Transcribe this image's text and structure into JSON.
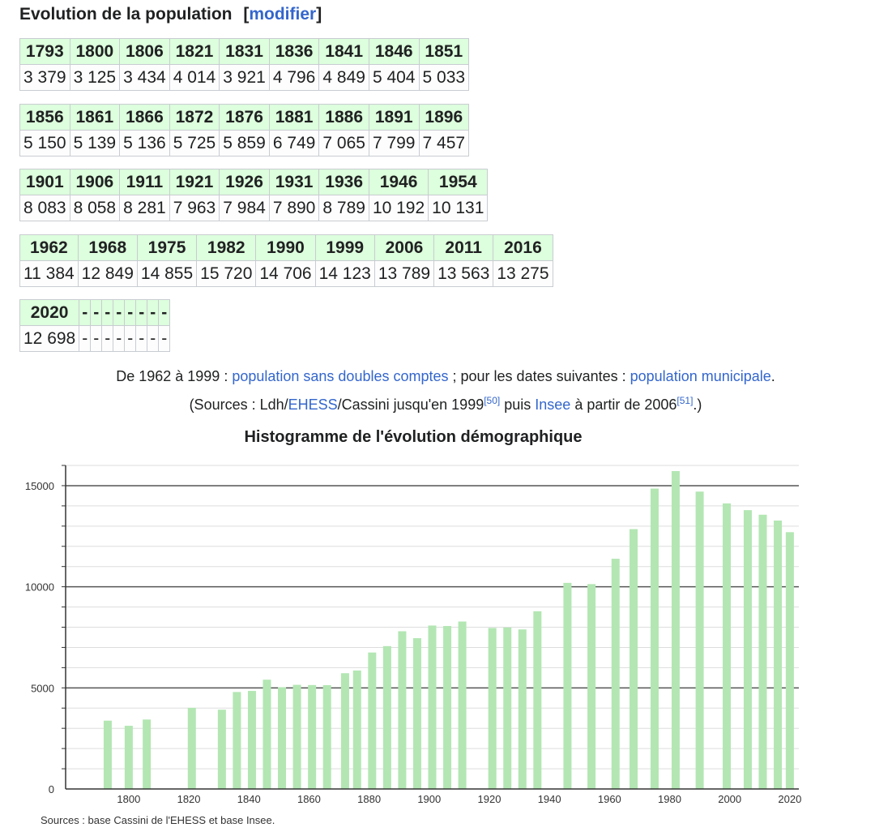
{
  "section": {
    "title": "Evolution de la population",
    "edit_open": "[",
    "edit_link": "modifier",
    "edit_close": "]"
  },
  "tables": [
    {
      "years": [
        "1793",
        "1800",
        "1806",
        "1821",
        "1831",
        "1836",
        "1841",
        "1846",
        "1851"
      ],
      "values": [
        "3 379",
        "3 125",
        "3 434",
        "4 014",
        "3 921",
        "4 796",
        "4 849",
        "5 404",
        "5 033"
      ]
    },
    {
      "years": [
        "1856",
        "1861",
        "1866",
        "1872",
        "1876",
        "1881",
        "1886",
        "1891",
        "1896"
      ],
      "values": [
        "5 150",
        "5 139",
        "5 136",
        "5 725",
        "5 859",
        "6 749",
        "7 065",
        "7 799",
        "7 457"
      ]
    },
    {
      "years": [
        "1901",
        "1906",
        "1911",
        "1921",
        "1926",
        "1931",
        "1936",
        "1946",
        "1954"
      ],
      "values": [
        "8 083",
        "8 058",
        "8 281",
        "7 963",
        "7 984",
        "7 890",
        "8 789",
        "10 192",
        "10 131"
      ]
    },
    {
      "years": [
        "1962",
        "1968",
        "1975",
        "1982",
        "1990",
        "1999",
        "2006",
        "2011",
        "2016"
      ],
      "values": [
        "11 384",
        "12 849",
        "14 855",
        "15 720",
        "14 706",
        "14 123",
        "13 789",
        "13 563",
        "13 275"
      ]
    },
    {
      "years": [
        "2020",
        "-",
        "-",
        "-",
        "-",
        "-",
        "-",
        "-",
        "-"
      ],
      "values": [
        "12 698",
        "-",
        "-",
        "-",
        "-",
        "-",
        "-",
        "-",
        "-"
      ]
    }
  ],
  "notes": {
    "line1_a": "De 1962 à 1999 : ",
    "line1_link1": "population sans doubles comptes",
    "line1_b": " ; pour les dates suivantes : ",
    "line1_link2": "population municipale",
    "line1_c": ".",
    "line2_a": "(Sources : Ldh/",
    "line2_link1": "EHESS",
    "line2_b": "/Cassini jusqu'en 1999",
    "line2_ref1": "[50]",
    "line2_c": " puis ",
    "line2_link2": "Insee",
    "line2_d": " à partir de 2006",
    "line2_ref2": "[51]",
    "line2_e": ".)"
  },
  "chart_data": {
    "type": "bar",
    "title": "Histogramme de l'évolution démographique",
    "x": [
      1793,
      1800,
      1806,
      1821,
      1831,
      1836,
      1841,
      1846,
      1851,
      1856,
      1861,
      1866,
      1872,
      1876,
      1881,
      1886,
      1891,
      1896,
      1901,
      1906,
      1911,
      1921,
      1926,
      1931,
      1936,
      1946,
      1954,
      1962,
      1968,
      1975,
      1982,
      1990,
      1999,
      2006,
      2011,
      2016,
      2020
    ],
    "values": [
      3379,
      3125,
      3434,
      4014,
      3921,
      4796,
      4849,
      5404,
      5033,
      5150,
      5139,
      5136,
      5725,
      5859,
      6749,
      7065,
      7799,
      7457,
      8083,
      8058,
      8281,
      7963,
      7984,
      7890,
      8789,
      10192,
      10131,
      11384,
      12849,
      14855,
      15720,
      14706,
      14123,
      13789,
      13563,
      13275,
      12698
    ],
    "xlim": [
      1779,
      2023
    ],
    "ylim": [
      0,
      16000
    ],
    "xticks": [
      "1800",
      "1820",
      "1840",
      "1860",
      "1880",
      "1900",
      "1920",
      "1940",
      "1960",
      "1980",
      "2000",
      "2020"
    ],
    "yticks": [
      "0",
      "5000",
      "10000",
      "15000"
    ],
    "grid": true,
    "bar_color": "#b3e6b3",
    "source": "Sources : base Cassini de l'EHESS et base Insee."
  }
}
